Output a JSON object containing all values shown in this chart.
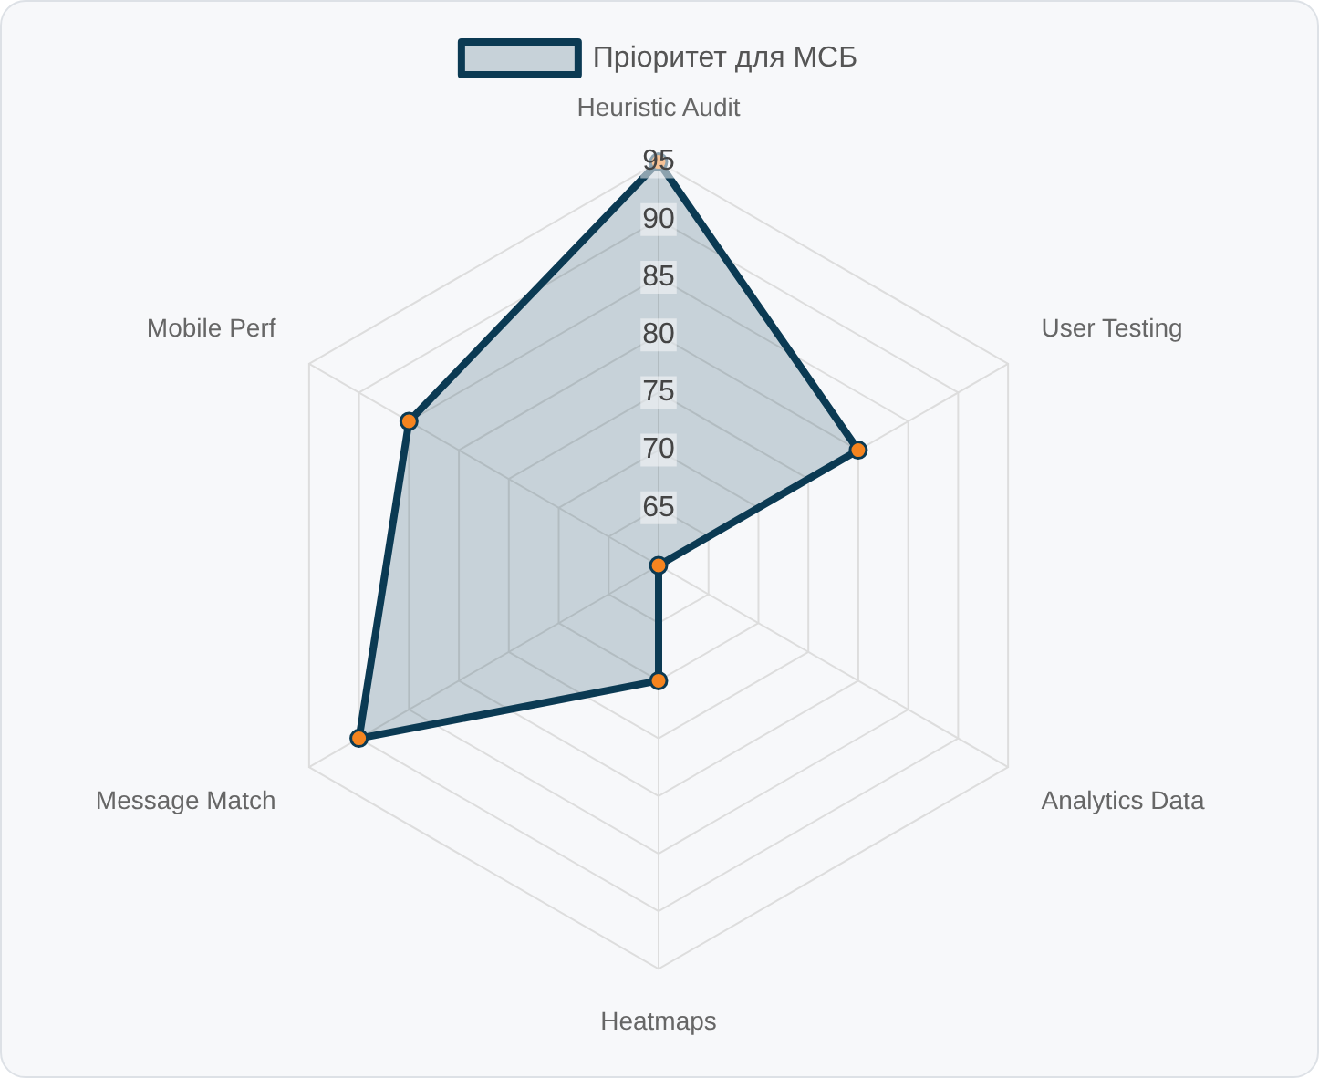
{
  "chart_data": {
    "type": "radar",
    "categories": [
      "Heuristic Audit",
      "User Testing",
      "Analytics Data",
      "Heatmaps",
      "Message Match",
      "Mobile Perf"
    ],
    "series": [
      {
        "name": "Пріоритет для МСБ",
        "color": "#0b3a53",
        "values": [
          95,
          80,
          60,
          70,
          90,
          85
        ]
      }
    ],
    "ylim": [
      60,
      95
    ],
    "yticks": [
      65,
      70,
      75,
      80,
      85,
      90,
      95
    ],
    "grid": true,
    "legend": "top",
    "marker": "circle"
  }
}
